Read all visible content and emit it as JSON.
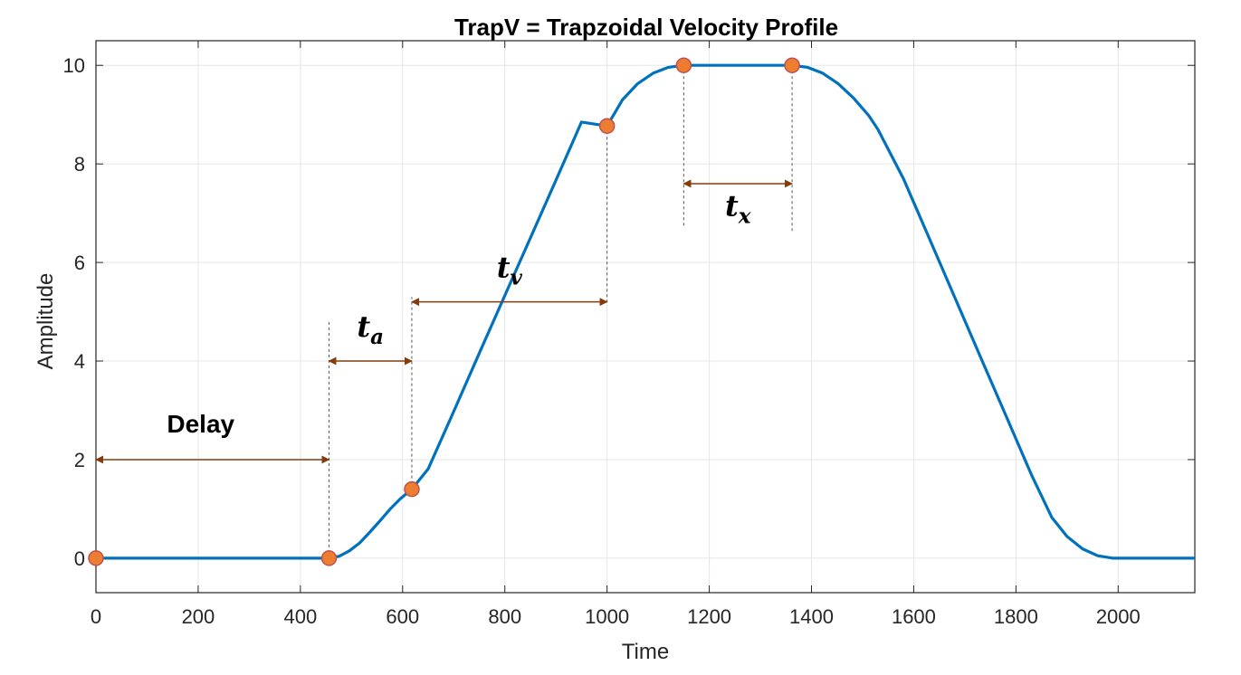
{
  "chart_data": {
    "type": "line",
    "title": "TrapV = Trapzoidal Velocity Profile",
    "xlabel": "Time",
    "ylabel": "Amplitude",
    "xlim": [
      0,
      2150
    ],
    "ylim": [
      -0.7,
      10.5
    ],
    "xticks": [
      0,
      200,
      400,
      600,
      800,
      1000,
      1200,
      1400,
      1600,
      1800,
      2000
    ],
    "yticks": [
      0,
      2,
      4,
      6,
      8,
      10
    ],
    "grid": true,
    "colors": {
      "line": "#0072BD",
      "marker": "#ED7D31",
      "marker_edge": "#C0504D",
      "arrow": "#843C0C",
      "grid": "#E6E6E6",
      "axis": "#262626"
    },
    "series": [
      {
        "x": [
          0,
          456,
          476,
          496,
          516,
          536,
          556,
          576,
          596,
          618,
          650,
          700,
          750,
          800,
          850,
          900,
          950,
          1000,
          1030,
          1060,
          1090,
          1120,
          1150,
          1362,
          1392,
          1422,
          1452,
          1482,
          1512,
          1530,
          1580,
          1630,
          1680,
          1730,
          1780,
          1830,
          1870,
          1900,
          1930,
          1960,
          1990,
          2020,
          2050,
          2150
        ],
        "y": [
          0,
          0,
          0.04,
          0.15,
          0.31,
          0.53,
          0.76,
          1.0,
          1.21,
          1.4,
          1.81,
          2.98,
          4.16,
          5.33,
          6.5,
          7.67,
          8.85,
          8.77,
          9.3,
          9.63,
          9.84,
          9.96,
          10,
          10,
          9.96,
          9.84,
          9.63,
          9.34,
          8.98,
          8.7,
          7.7,
          6.5,
          5.3,
          4.1,
          2.9,
          1.7,
          0.83,
          0.44,
          0.19,
          0.05,
          0.0,
          0,
          0,
          0
        ]
      }
    ],
    "markers": [
      {
        "x": 0,
        "y": 0
      },
      {
        "x": 456,
        "y": 0
      },
      {
        "x": 618,
        "y": 1.4
      },
      {
        "x": 1000,
        "y": 8.77
      },
      {
        "x": 1150,
        "y": 10
      },
      {
        "x": 1362,
        "y": 10
      }
    ],
    "guides": [
      {
        "x": 456,
        "y_from": 0,
        "y_to": 4.8
      },
      {
        "x": 618,
        "y_from": 1.4,
        "y_to": 5.3
      },
      {
        "x": 1000,
        "y_from": 8.77,
        "y_to": 5.15
      },
      {
        "x": 1150,
        "y_from": 10,
        "y_to": 6.7
      },
      {
        "x": 1362,
        "y_from": 10,
        "y_to": 6.6
      }
    ],
    "annotations": [
      {
        "id": "delay",
        "text": "Delay",
        "x1": 0,
        "x2": 456,
        "y": 2,
        "label_x": 205,
        "label_y": 2.55
      },
      {
        "id": "ta",
        "text": "t",
        "sub": "a",
        "x1": 456,
        "x2": 618,
        "y": 4,
        "label_x": 537,
        "label_y": 4.5
      },
      {
        "id": "tv",
        "text": "t",
        "sub": "v",
        "x1": 618,
        "x2": 1000,
        "y": 5.2,
        "label_x": 809,
        "label_y": 5.7
      },
      {
        "id": "tx",
        "text": "t",
        "sub": "x",
        "x1": 1150,
        "x2": 1362,
        "y": 7.6,
        "label_x": 1256,
        "label_y": 6.95
      }
    ]
  }
}
